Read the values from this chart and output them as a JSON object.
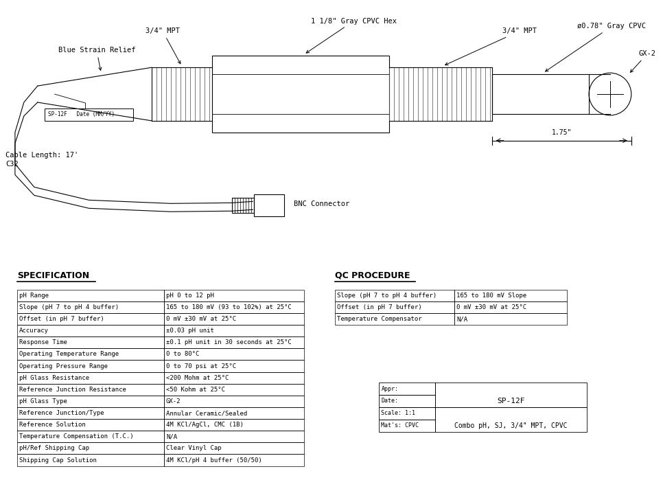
{
  "bg_color": "#ffffff",
  "line_color": "#000000",
  "spec_title": "SPECIFICATION",
  "spec_rows": [
    [
      "pH Range",
      "pH 0 to 12 pH"
    ],
    [
      "Slope (pH 7 to pH 4 buffer)",
      "165 to 180 mV (93 to 102%) at 25°C"
    ],
    [
      "Offset (in pH 7 buffer)",
      "0 mV ±30 mV at 25°C"
    ],
    [
      "Accuracy",
      "±0.03 pH unit"
    ],
    [
      "Response Time",
      "±0.1 pH unit in 30 seconds at 25°C"
    ],
    [
      "Operating Temperature Range",
      "0 to 80°C"
    ],
    [
      "Operating Pressure Range",
      "0 to 70 psi at 25°C"
    ],
    [
      "pH Glass Resistance",
      "<200 Mohm at 25°C"
    ],
    [
      "Reference Junction Resistance",
      "<50 Kohm at 25°C"
    ],
    [
      "pH Glass Type",
      "GX-2"
    ],
    [
      "Reference Junction/Type",
      "Annular Ceramic/Sealed"
    ],
    [
      "Reference Solution",
      "4M KCl/AgCl, CMC (1B)"
    ],
    [
      "Temperature Compensation (T.C.)",
      "N/A"
    ],
    [
      "pH/Ref Shipping Cap",
      "Clear Vinyl Cap"
    ],
    [
      "Shipping Cap Solution",
      "4M KCl/pH 4 buffer (50/50)"
    ]
  ],
  "qc_title": "QC PROCEDURE",
  "qc_rows": [
    [
      "Slope (pH 7 to pH 4 buffer)",
      "165 to 180 mV Slope"
    ],
    [
      "Offset (in pH 7 buffer)",
      "0 mV ±30 mV at 25°C"
    ],
    [
      "Temperature Compensator",
      "N/A"
    ]
  ],
  "title_box_rows": [
    [
      "Appr:",
      ""
    ],
    [
      "Date:",
      "SP-12F"
    ],
    [
      "Scale: 1:1",
      ""
    ],
    [
      "Mat's: CPVC",
      "Combo pH, SJ, 3/4\" MPT, CPVC"
    ]
  ],
  "annotations": {
    "three_quarter_mpt_left": "3/4\" MPT",
    "blue_strain_relief": "Blue Strain Relief",
    "one_one_eighth_hex": "1 1/8\" Gray CPVC Hex",
    "three_quarter_mpt_right": "3/4\" MPT",
    "phi_cpvc": "ø0.78\" Gray CPVC",
    "gx2": "GX-2",
    "dimension_175": "1.75\"",
    "bnc": "BNC Connector",
    "cable_length": "Cable Length: 17'",
    "c32": "C32",
    "sp12f_label": "SP-12F   Date (MM/YY)"
  }
}
